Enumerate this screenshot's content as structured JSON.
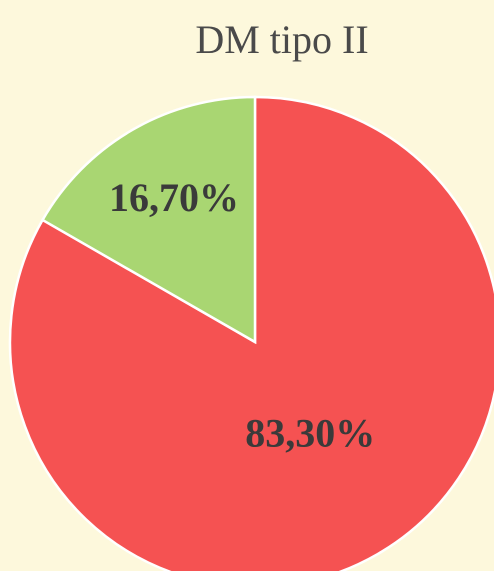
{
  "chart_data": {
    "type": "pie",
    "title": "DM tipo II",
    "values": [
      83.3,
      16.7
    ],
    "value_labels": [
      "83,30%",
      "16,70%"
    ],
    "colors": [
      "#f55252",
      "#a9d672"
    ]
  }
}
